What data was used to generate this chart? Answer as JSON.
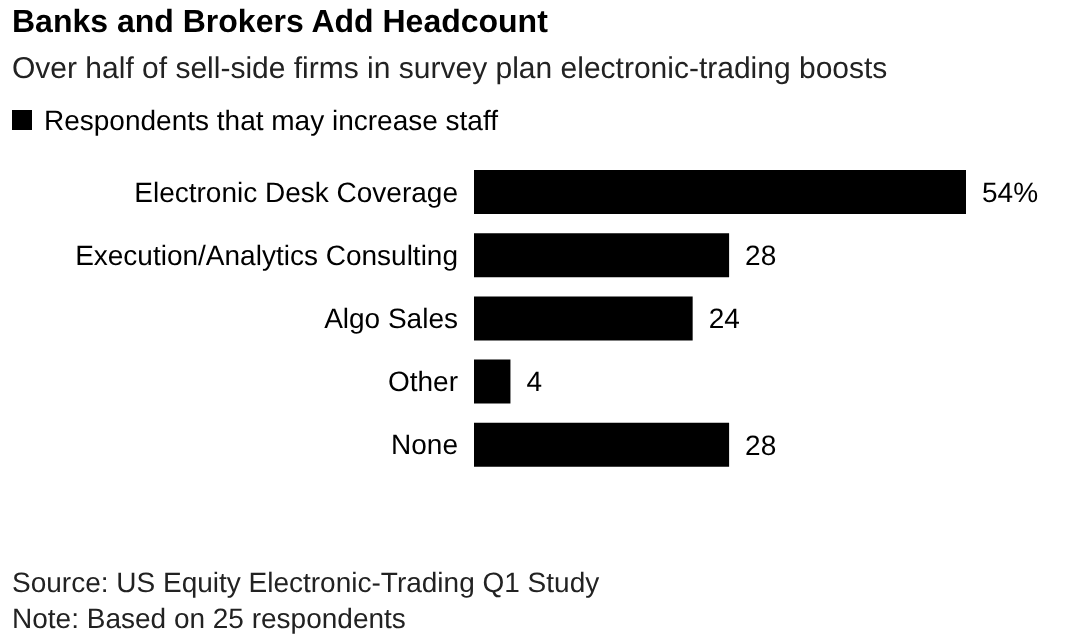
{
  "chart_data": {
    "type": "bar",
    "orientation": "horizontal",
    "title": "Banks and Brokers Add Headcount",
    "subtitle": "Over half of sell-side firms in survey plan electronic-trading boosts",
    "categories": [
      "Electronic Desk Coverage",
      "Execution/Analytics Consulting",
      "Algo Sales",
      "Other",
      "None"
    ],
    "series": [
      {
        "name": "Respondents that may increase staff",
        "color": "#000000",
        "values": [
          54,
          28,
          24,
          4,
          28
        ],
        "value_labels": [
          "54%",
          "28",
          "24",
          "4",
          "28"
        ]
      }
    ],
    "legend": "top left",
    "grid": false,
    "annotations": [
      "Source: US Equity Electronic-Trading Q1 Study",
      "Note: Based on 25 respondents"
    ]
  }
}
